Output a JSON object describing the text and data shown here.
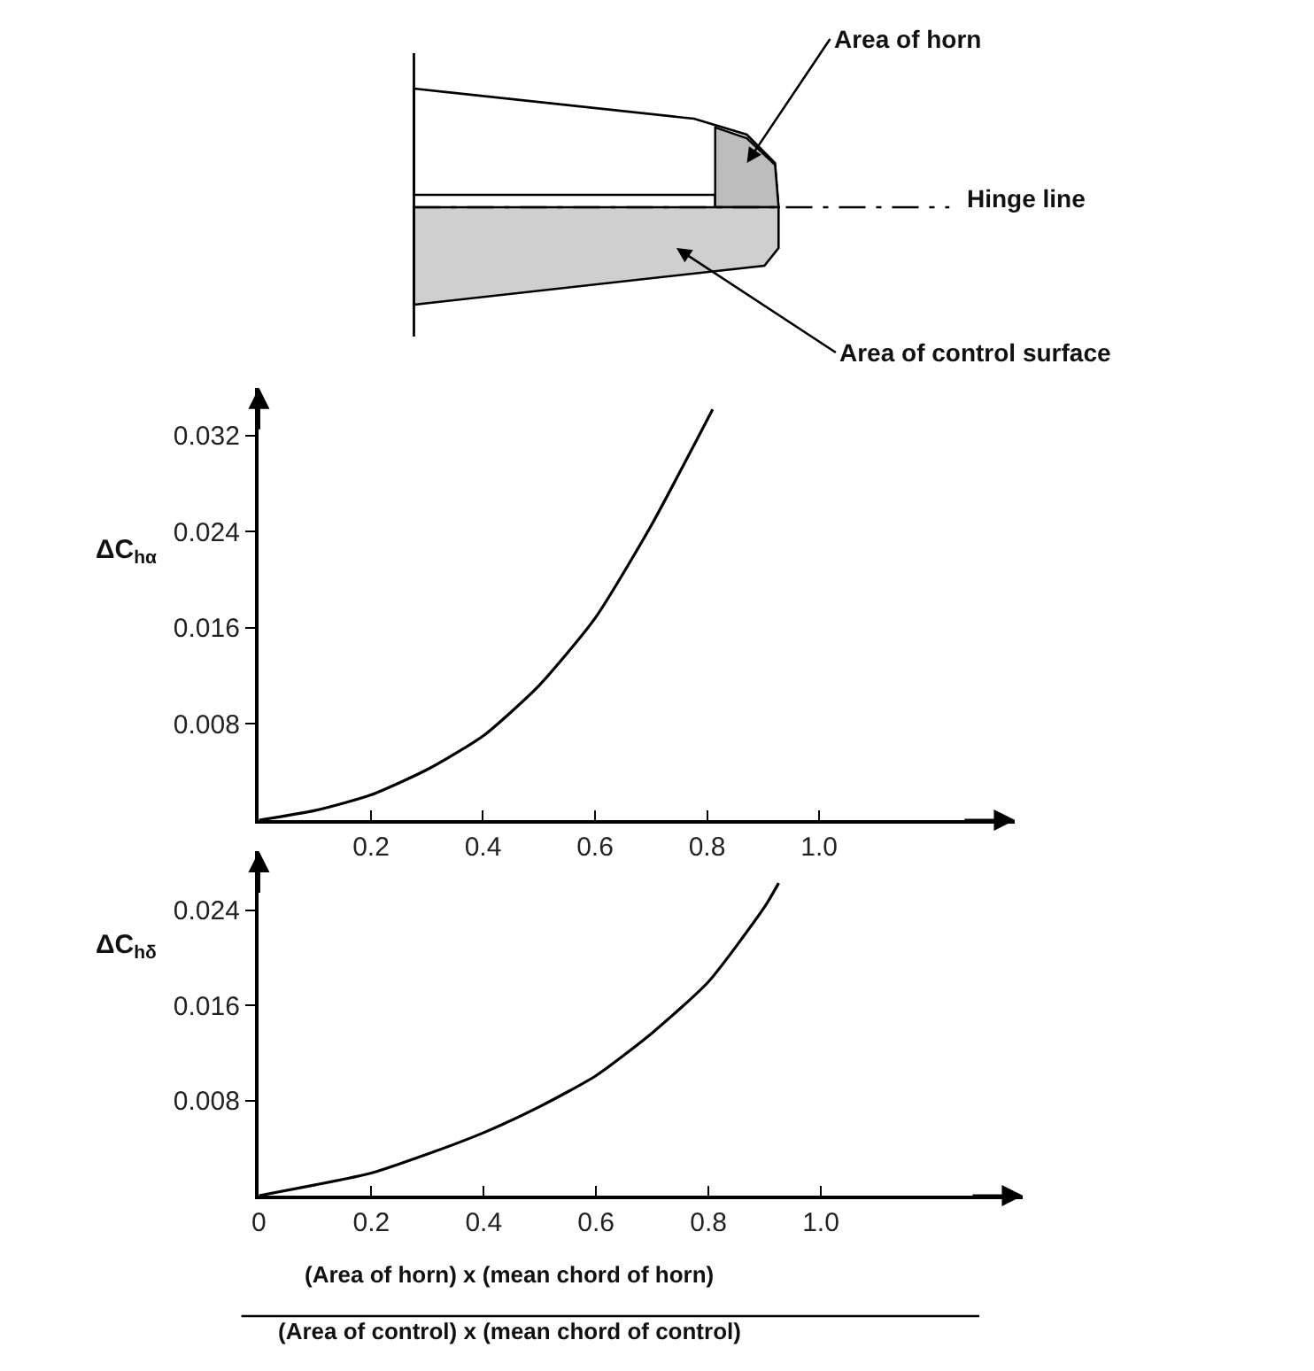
{
  "chart_data": [
    {
      "type": "line",
      "ylabel": "ΔC$_{hα}$",
      "annotations": [
        "Area of horn",
        "Hinge line",
        "Area of control surface"
      ],
      "x": [
        0,
        0.1,
        0.2,
        0.3,
        0.4,
        0.5,
        0.6,
        0.7,
        0.81
      ],
      "series": [
        {
          "color": "#000000",
          "values": [
            0,
            0.0008,
            0.0021,
            0.0042,
            0.007,
            0.0112,
            0.0168,
            0.0245,
            0.0342
          ]
        }
      ],
      "xlim": [
        0,
        1.35
      ],
      "ylim": [
        0,
        0.036
      ],
      "xticks": [
        0.2,
        0.4,
        0.6,
        0.8,
        {
          "value": 1,
          "label": "1.0"
        }
      ],
      "yticks": [
        0.008,
        0.016,
        0.024,
        0.032
      ],
      "grid": false,
      "marker": "none",
      "line_style": "solid"
    },
    {
      "type": "line",
      "ylabel": "ΔC$_{hδ}$",
      "xlabel": "(Area of horn) x (mean chord of horn)\n(Area of control) x (mean chord of control)",
      "x": [
        0,
        0.1,
        0.2,
        0.3,
        0.4,
        0.5,
        0.6,
        0.7,
        0.8,
        0.9,
        0.925
      ],
      "series": [
        {
          "color": "#000000",
          "values": [
            0,
            0.0009,
            0.0019,
            0.0035,
            0.0053,
            0.0075,
            0.0101,
            0.0137,
            0.018,
            0.0243,
            0.0263
          ]
        }
      ],
      "xlim": [
        0,
        1.36
      ],
      "ylim": [
        0,
        0.029
      ],
      "xticks": [
        0,
        0.2,
        0.4,
        0.6,
        0.8,
        {
          "value": 1,
          "label": "1.0"
        }
      ],
      "yticks": [
        0.008,
        0.016,
        0.024
      ],
      "grid": false,
      "marker": "none",
      "line_style": "solid"
    }
  ]
}
